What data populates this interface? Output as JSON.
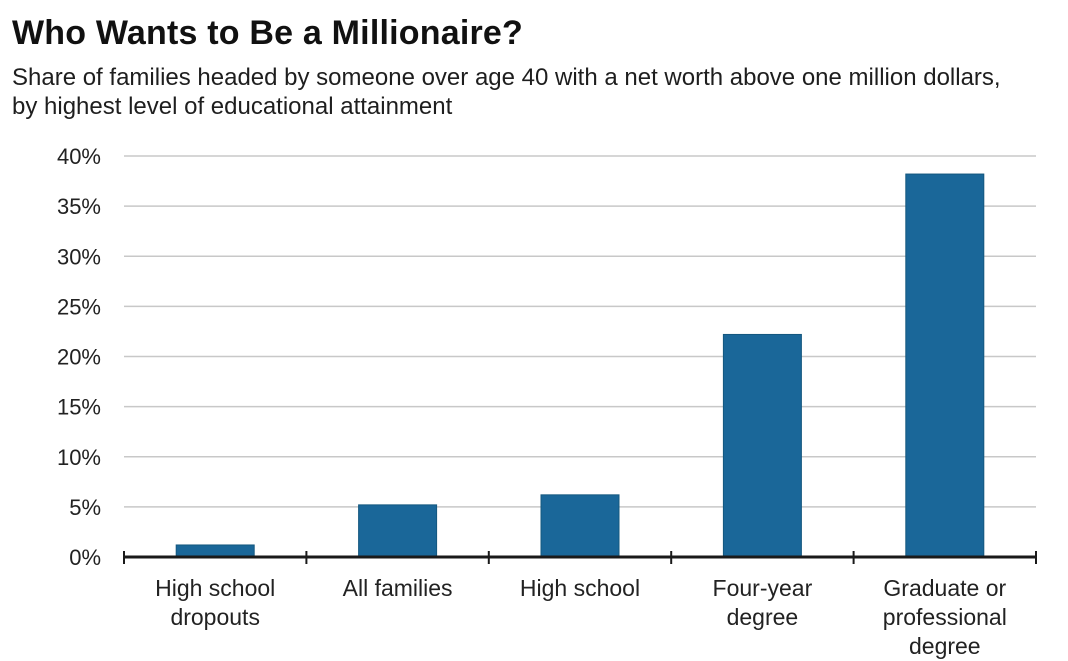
{
  "chart_data": {
    "type": "bar",
    "title": "Who Wants to Be a Millionaire?",
    "subtitle": "Share of families headed by someone over age 40 with a net worth above one million dollars, by highest level of educational attainment",
    "xlabel": "",
    "ylabel": "",
    "categories": [
      [
        "High school",
        "dropouts"
      ],
      [
        "All families"
      ],
      [
        "High school"
      ],
      [
        "Four-year",
        "degree"
      ],
      [
        "Graduate or",
        "professional",
        "degree"
      ]
    ],
    "values": [
      1.2,
      5.2,
      6.2,
      22.2,
      38.2
    ],
    "ylim": [
      0,
      40
    ],
    "yticks": [
      "0%",
      "5%",
      "10%",
      "15%",
      "20%",
      "25%",
      "30%",
      "35%",
      "40%"
    ],
    "grid": true,
    "legend": "none",
    "colors": {
      "bar": "#1a6799",
      "bar_edge": "#14587f",
      "grid": "#c8c8c8",
      "axis": "#1a1a1a"
    }
  }
}
